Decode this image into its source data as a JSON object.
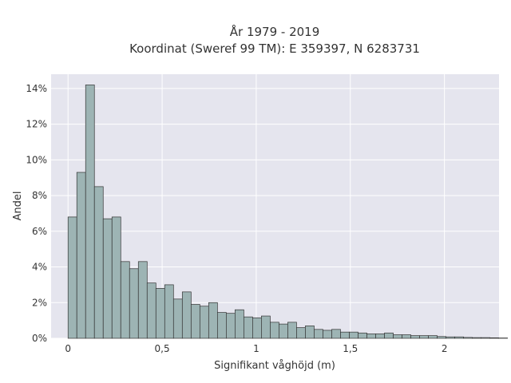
{
  "chart_data": {
    "type": "bar",
    "title_lines": [
      "År 1979 - 2019",
      "Koordinat (Sweref 99 TM): E 359397, N 6283731"
    ],
    "xlabel": "Signifikant våghöjd (m)",
    "ylabel": "Andel",
    "xlim": [
      -0.09,
      2.29
    ],
    "ylim": [
      0,
      14.8
    ],
    "x_ticks": [
      {
        "value": 0,
        "label": "0"
      },
      {
        "value": 0.5,
        "label": "0,5"
      },
      {
        "value": 1,
        "label": "1"
      },
      {
        "value": 1.5,
        "label": "1,5"
      },
      {
        "value": 2,
        "label": "2"
      }
    ],
    "y_ticks": [
      {
        "value": 0,
        "label": "0%"
      },
      {
        "value": 2,
        "label": "2%"
      },
      {
        "value": 4,
        "label": "4%"
      },
      {
        "value": 6,
        "label": "6%"
      },
      {
        "value": 8,
        "label": "8%"
      },
      {
        "value": 10,
        "label": "10%"
      },
      {
        "value": 12,
        "label": "12%"
      },
      {
        "value": 14,
        "label": "14%"
      }
    ],
    "bin_start": 0.0,
    "bin_width": 0.0467,
    "values": [
      6.8,
      9.3,
      14.2,
      8.5,
      6.7,
      6.8,
      4.3,
      3.9,
      4.3,
      3.1,
      2.8,
      3.0,
      2.2,
      2.6,
      1.9,
      1.8,
      2.0,
      1.45,
      1.4,
      1.6,
      1.2,
      1.15,
      1.25,
      0.9,
      0.8,
      0.9,
      0.6,
      0.7,
      0.5,
      0.45,
      0.5,
      0.35,
      0.35,
      0.3,
      0.25,
      0.25,
      0.3,
      0.2,
      0.2,
      0.15,
      0.15,
      0.15,
      0.1,
      0.08,
      0.08,
      0.05,
      0.04,
      0.04,
      0.03,
      0.02
    ],
    "bar_color": "#9db4b4",
    "bar_edge_color": "#333333",
    "plot_background": "#e5e5ee",
    "grid": true,
    "grid_color": "#ffffff"
  }
}
